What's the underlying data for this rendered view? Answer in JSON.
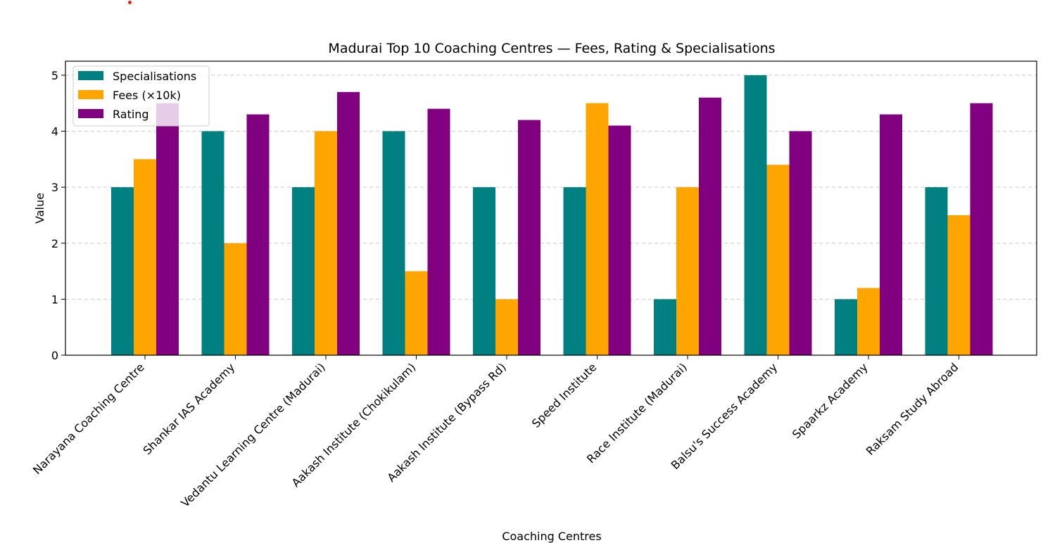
{
  "chart_data": {
    "type": "bar",
    "title": "Madurai Top 10 Coaching Centres — Fees, Rating & Specialisations",
    "xlabel": "Coaching Centres",
    "ylabel": "Value",
    "ylim": [
      0,
      5.25
    ],
    "yticks": [
      "0",
      "1",
      "2",
      "3",
      "4",
      "5"
    ],
    "grid": "y-dashed",
    "legend_position": "upper-left",
    "categories": [
      "Narayana Coaching Centre",
      "Shankar IAS Academy",
      "Vedantu Learning Centre (Madurai)",
      "Aakash Institute (Chokikulam)",
      "Aakash Institute (Bypass Rd)",
      "Speed Institute",
      "Race Institute (Madurai)",
      "Balsu's Success Academy",
      "Spaarkz Academy",
      "Raksam Study Abroad"
    ],
    "series": [
      {
        "name": "Specialisations",
        "color": "#008080",
        "values": [
          3,
          4,
          3,
          4,
          3,
          3,
          1,
          5,
          1,
          3
        ]
      },
      {
        "name": "Fees (×10k)",
        "color": "#ffa500",
        "values": [
          3.5,
          2,
          4,
          1.5,
          1,
          4.5,
          3,
          3.4,
          1.2,
          2.5
        ]
      },
      {
        "name": "Rating",
        "color": "#800080",
        "values": [
          4.5,
          4.3,
          4.7,
          4.4,
          4.2,
          4.1,
          4.6,
          4.0,
          4.3,
          4.5
        ]
      }
    ]
  }
}
